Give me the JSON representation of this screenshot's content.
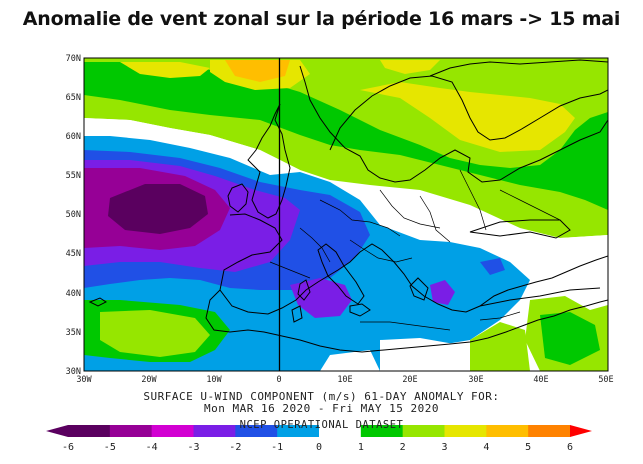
{
  "title": "Anomalie de vent zonal sur la période 16 mars -> 15 mai",
  "lat_labels": [
    "70N",
    "65N",
    "60N",
    "55N",
    "50N",
    "45N",
    "40N",
    "35N",
    "30N"
  ],
  "lon_labels": [
    "30W",
    "20W",
    "10W",
    "0",
    "10E",
    "20E",
    "30E",
    "40E",
    "50E"
  ],
  "caption_line1": "SURFACE U-WIND COMPONENT (m/s)   61-DAY ANOMALY FOR:",
  "caption_line2": "Mon MAR 16 2020 - Fri MAY 15 2020",
  "caption_line3": "NCEP OPERATIONAL DATASET",
  "colorbar": {
    "ticks": [
      "-6",
      "-5",
      "-4",
      "-3",
      "-2",
      "-1",
      "0",
      "1",
      "2",
      "3",
      "4",
      "5",
      "6"
    ],
    "colors": [
      "#5a005f",
      "#960096",
      "#d200d2",
      "#7a1ee6",
      "#2050e6",
      "#00a0e6",
      "#ffffff",
      "#00c800",
      "#96e600",
      "#e6e600",
      "#ffbe00",
      "#ff8200",
      "#ff2800",
      "#ff0000"
    ]
  }
}
